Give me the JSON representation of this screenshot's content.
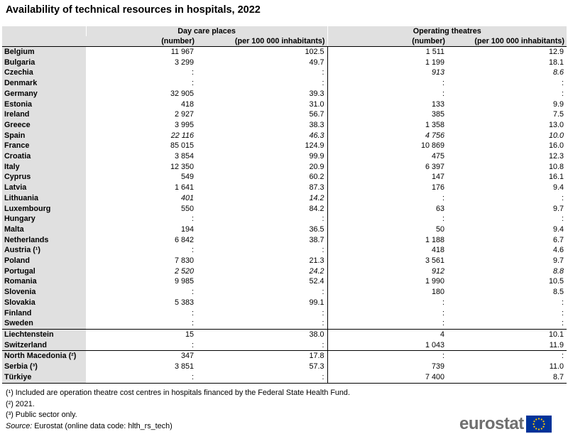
{
  "title": "Availability of technical resources in hospitals, 2022",
  "header": {
    "group1": "Day care places",
    "group2": "Operating theatres",
    "sub": [
      "(number)",
      "(per 100 000 inhabitants)",
      "(number)",
      "(per 100 000 inhabitants)"
    ]
  },
  "rows": [
    {
      "c": "Belgium",
      "v": [
        "11 967",
        "102.5",
        "1 511",
        "12.9"
      ],
      "it": [
        false,
        false,
        false,
        false
      ]
    },
    {
      "c": "Bulgaria",
      "v": [
        "3 299",
        "49.7",
        "1 199",
        "18.1"
      ],
      "it": [
        false,
        false,
        false,
        false
      ]
    },
    {
      "c": "Czechia",
      "v": [
        ":",
        ":",
        "913",
        "8.6"
      ],
      "it": [
        false,
        false,
        true,
        true
      ]
    },
    {
      "c": "Denmark",
      "v": [
        ":",
        ":",
        ":",
        ":"
      ],
      "it": [
        false,
        false,
        false,
        false
      ]
    },
    {
      "c": "Germany",
      "v": [
        "32 905",
        "39.3",
        ":",
        ":"
      ],
      "it": [
        false,
        false,
        false,
        false
      ]
    },
    {
      "c": "Estonia",
      "v": [
        "418",
        "31.0",
        "133",
        "9.9"
      ],
      "it": [
        false,
        false,
        false,
        false
      ]
    },
    {
      "c": "Ireland",
      "v": [
        "2 927",
        "56.7",
        "385",
        "7.5"
      ],
      "it": [
        false,
        false,
        false,
        false
      ]
    },
    {
      "c": "Greece",
      "v": [
        "3 995",
        "38.3",
        "1 358",
        "13.0"
      ],
      "it": [
        false,
        false,
        false,
        false
      ]
    },
    {
      "c": "Spain",
      "v": [
        "22 116",
        "46.3",
        "4 756",
        "10.0"
      ],
      "it": [
        true,
        true,
        true,
        true
      ]
    },
    {
      "c": "France",
      "v": [
        "85 015",
        "124.9",
        "10 869",
        "16.0"
      ],
      "it": [
        false,
        false,
        false,
        false
      ]
    },
    {
      "c": "Croatia",
      "v": [
        "3 854",
        "99.9",
        "475",
        "12.3"
      ],
      "it": [
        false,
        false,
        false,
        false
      ]
    },
    {
      "c": "Italy",
      "v": [
        "12 350",
        "20.9",
        "6 397",
        "10.8"
      ],
      "it": [
        false,
        false,
        false,
        false
      ]
    },
    {
      "c": "Cyprus",
      "v": [
        "549",
        "60.2",
        "147",
        "16.1"
      ],
      "it": [
        false,
        false,
        false,
        false
      ]
    },
    {
      "c": "Latvia",
      "v": [
        "1 641",
        "87.3",
        "176",
        "9.4"
      ],
      "it": [
        false,
        false,
        false,
        false
      ]
    },
    {
      "c": "Lithuania",
      "v": [
        "401",
        "14.2",
        ":",
        ":"
      ],
      "it": [
        true,
        true,
        false,
        false
      ]
    },
    {
      "c": "Luxembourg",
      "v": [
        "550",
        "84.2",
        "63",
        "9.7"
      ],
      "it": [
        false,
        false,
        false,
        false
      ]
    },
    {
      "c": "Hungary",
      "v": [
        ":",
        ":",
        ":",
        ":"
      ],
      "it": [
        false,
        false,
        false,
        false
      ]
    },
    {
      "c": "Malta",
      "v": [
        "194",
        "36.5",
        "50",
        "9.4"
      ],
      "it": [
        false,
        false,
        false,
        false
      ]
    },
    {
      "c": "Netherlands",
      "v": [
        "6 842",
        "38.7",
        "1 188",
        "6.7"
      ],
      "it": [
        false,
        false,
        false,
        false
      ]
    },
    {
      "c": "Austria (¹)",
      "v": [
        ":",
        ":",
        "418",
        "4.6"
      ],
      "it": [
        false,
        false,
        false,
        false
      ]
    },
    {
      "c": "Poland",
      "v": [
        "7 830",
        "21.3",
        "3 561",
        "9.7"
      ],
      "it": [
        false,
        false,
        false,
        false
      ]
    },
    {
      "c": "Portugal",
      "v": [
        "2 520",
        "24.2",
        "912",
        "8.8"
      ],
      "it": [
        true,
        true,
        true,
        true
      ]
    },
    {
      "c": "Romania",
      "v": [
        "9 985",
        "52.4",
        "1 990",
        "10.5"
      ],
      "it": [
        false,
        false,
        false,
        false
      ]
    },
    {
      "c": "Slovenia",
      "v": [
        ":",
        ":",
        "180",
        "8.5"
      ],
      "it": [
        false,
        false,
        false,
        false
      ]
    },
    {
      "c": "Slovakia",
      "v": [
        "5 383",
        "99.1",
        ":",
        ":"
      ],
      "it": [
        false,
        false,
        false,
        false
      ]
    },
    {
      "c": "Finland",
      "v": [
        ":",
        ":",
        ":",
        ":"
      ],
      "it": [
        false,
        false,
        false,
        false
      ]
    },
    {
      "c": "Sweden",
      "v": [
        ":",
        ":",
        ":",
        ":"
      ],
      "it": [
        false,
        false,
        false,
        false
      ]
    },
    {
      "c": "Liechtenstein",
      "v": [
        "15",
        "38.0",
        "4",
        "10.1"
      ],
      "it": [
        false,
        false,
        false,
        false
      ],
      "grp": true
    },
    {
      "c": "Switzerland",
      "v": [
        ":",
        ":",
        "1 043",
        "11.9"
      ],
      "it": [
        false,
        false,
        false,
        false
      ]
    },
    {
      "c": "North Macedonia (²)",
      "v": [
        "347",
        "17.8",
        ":",
        ":"
      ],
      "it": [
        false,
        false,
        false,
        false
      ],
      "grp": true
    },
    {
      "c": "Serbia (³)",
      "v": [
        "3 851",
        "57.3",
        "739",
        "11.0"
      ],
      "it": [
        false,
        false,
        false,
        false
      ]
    },
    {
      "c": "Türkiye",
      "v": [
        ":",
        ":",
        "7 400",
        "8.7"
      ],
      "it": [
        false,
        false,
        false,
        false
      ]
    }
  ],
  "notes": [
    "(¹) Included are operation theatre cost centres in hospitals financed by the Federal State Health Fund.",
    "(²) 2021.",
    "(³) Public sector only."
  ],
  "source": {
    "label": "Source:",
    "text": "Eurostat (online data code: hlth_rs_tech)"
  },
  "logo": {
    "text": "eurostat",
    "flag_color": "#003399",
    "star_color": "#ffcc00"
  }
}
